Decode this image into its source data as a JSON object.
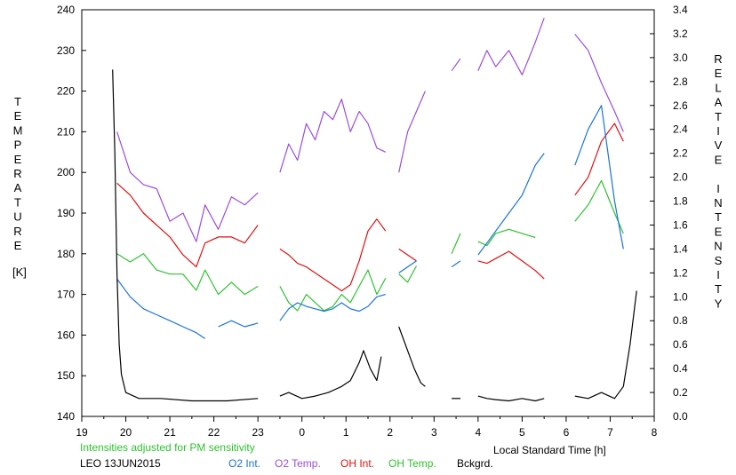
{
  "chart_data": {
    "type": "line",
    "xlabel": "Local Standard Time [h]",
    "x_tick_labels": [
      "19",
      "20",
      "21",
      "22",
      "23",
      "0",
      "1",
      "2",
      "3",
      "4",
      "5",
      "6",
      "7",
      "8"
    ],
    "x_tick_positions": [
      19,
      20,
      21,
      22,
      23,
      24,
      25,
      26,
      27,
      28,
      29,
      30,
      31,
      32
    ],
    "xlim": [
      19,
      32
    ],
    "y_left": {
      "label": "TEMPERATURE",
      "unit": "[K]",
      "ylim": [
        140,
        240
      ],
      "ticks": [
        "140",
        "150",
        "160",
        "170",
        "180",
        "190",
        "200",
        "210",
        "220",
        "230",
        "240"
      ]
    },
    "y_right": {
      "label": "RELATIVE INTENSITY",
      "ylim": [
        0.0,
        3.4
      ],
      "ticks": [
        "0.0",
        "0.2",
        "0.4",
        "0.6",
        "0.8",
        "1.0",
        "1.2",
        "1.4",
        "1.6",
        "1.8",
        "2.0",
        "2.2",
        "2.4",
        "2.6",
        "2.8",
        "3.0",
        "3.2",
        "3.4"
      ]
    },
    "note": "Intensities adjusted for PM sensitivity",
    "station": "LEO 13JUN2015",
    "legend": [
      {
        "label": "O2 Int.",
        "color": "#1a73d9"
      },
      {
        "label": "O2 Temp.",
        "color": "#9b4dd9"
      },
      {
        "label": "OH Int.",
        "color": "#e01010"
      },
      {
        "label": "OH Temp.",
        "color": "#2ec22e"
      },
      {
        "label": "Bckgrd.",
        "color": "#000000"
      }
    ],
    "series": [
      {
        "name": "O2 Temp.",
        "axis": "left",
        "color": "#9b4dd9",
        "segments": [
          [
            [
              19.8,
              210
            ],
            [
              20.1,
              200
            ],
            [
              20.4,
              197
            ],
            [
              20.7,
              196
            ],
            [
              21.0,
              188
            ],
            [
              21.3,
              190
            ],
            [
              21.6,
              183
            ],
            [
              21.8,
              192
            ],
            [
              22.1,
              186
            ],
            [
              22.4,
              194
            ],
            [
              22.7,
              192
            ],
            [
              23.0,
              195
            ]
          ],
          [
            [
              23.5,
              200
            ],
            [
              23.7,
              207
            ],
            [
              23.9,
              203
            ],
            [
              24.1,
              212
            ],
            [
              24.3,
              208
            ],
            [
              24.5,
              215
            ],
            [
              24.7,
              213
            ],
            [
              24.9,
              218
            ],
            [
              25.1,
              210
            ],
            [
              25.3,
              215
            ],
            [
              25.5,
              212
            ],
            [
              25.7,
              206
            ],
            [
              25.9,
              205
            ]
          ],
          [
            [
              26.2,
              200
            ],
            [
              26.4,
              210
            ],
            [
              26.6,
              215
            ],
            [
              26.8,
              220
            ]
          ],
          [
            [
              27.4,
              225
            ],
            [
              27.6,
              228
            ]
          ],
          [
            [
              28.0,
              225
            ],
            [
              28.2,
              230
            ],
            [
              28.4,
              226
            ],
            [
              28.7,
              230
            ],
            [
              29.0,
              224
            ],
            [
              29.3,
              232
            ],
            [
              29.5,
              238
            ]
          ],
          [
            [
              30.2,
              234
            ],
            [
              30.5,
              230
            ],
            [
              30.8,
              222
            ],
            [
              31.1,
              215
            ],
            [
              31.3,
              210
            ]
          ]
        ]
      },
      {
        "name": "OH Int.",
        "axis": "right",
        "color": "#e01010",
        "segments": [
          [
            [
              19.8,
              1.95
            ],
            [
              20.1,
              1.85
            ],
            [
              20.4,
              1.7
            ],
            [
              20.7,
              1.6
            ],
            [
              21.0,
              1.5
            ],
            [
              21.3,
              1.35
            ],
            [
              21.6,
              1.25
            ],
            [
              21.8,
              1.45
            ],
            [
              22.1,
              1.5
            ],
            [
              22.4,
              1.5
            ],
            [
              22.7,
              1.45
            ],
            [
              23.0,
              1.6
            ]
          ],
          [
            [
              23.5,
              1.4
            ],
            [
              23.7,
              1.35
            ],
            [
              23.9,
              1.28
            ],
            [
              24.1,
              1.25
            ],
            [
              24.3,
              1.2
            ],
            [
              24.5,
              1.15
            ],
            [
              24.7,
              1.1
            ],
            [
              24.9,
              1.05
            ],
            [
              25.1,
              1.1
            ],
            [
              25.3,
              1.3
            ],
            [
              25.5,
              1.55
            ],
            [
              25.7,
              1.65
            ],
            [
              25.9,
              1.55
            ]
          ],
          [
            [
              26.2,
              1.4
            ],
            [
              26.4,
              1.35
            ],
            [
              26.6,
              1.3
            ]
          ],
          [
            [
              28.0,
              1.3
            ],
            [
              28.2,
              1.28
            ],
            [
              28.4,
              1.32
            ],
            [
              28.7,
              1.38
            ],
            [
              29.0,
              1.3
            ],
            [
              29.3,
              1.22
            ],
            [
              29.5,
              1.15
            ]
          ],
          [
            [
              30.2,
              1.85
            ],
            [
              30.5,
              2.0
            ],
            [
              30.8,
              2.3
            ],
            [
              31.1,
              2.45
            ],
            [
              31.3,
              2.3
            ]
          ]
        ]
      },
      {
        "name": "OH Temp.",
        "axis": "left",
        "color": "#2ec22e",
        "segments": [
          [
            [
              19.8,
              180
            ],
            [
              20.1,
              178
            ],
            [
              20.4,
              180
            ],
            [
              20.7,
              176
            ],
            [
              21.0,
              175
            ],
            [
              21.3,
              175
            ],
            [
              21.6,
              171
            ],
            [
              21.8,
              176
            ],
            [
              22.1,
              170
            ],
            [
              22.4,
              173
            ],
            [
              22.7,
              170
            ],
            [
              23.0,
              172
            ]
          ],
          [
            [
              23.5,
              172
            ],
            [
              23.7,
              168
            ],
            [
              23.9,
              166
            ],
            [
              24.1,
              170
            ],
            [
              24.3,
              168
            ],
            [
              24.5,
              166
            ],
            [
              24.7,
              167
            ],
            [
              24.9,
              170
            ],
            [
              25.1,
              168
            ],
            [
              25.3,
              172
            ],
            [
              25.5,
              176
            ],
            [
              25.7,
              170
            ],
            [
              25.9,
              174
            ]
          ],
          [
            [
              26.2,
              175
            ],
            [
              26.4,
              173
            ],
            [
              26.6,
              177
            ]
          ],
          [
            [
              27.4,
              180
            ],
            [
              27.6,
              185
            ]
          ],
          [
            [
              28.0,
              183
            ],
            [
              28.2,
              182
            ],
            [
              28.4,
              185
            ],
            [
              28.7,
              186
            ],
            [
              29.0,
              185
            ],
            [
              29.3,
              184
            ]
          ],
          [
            [
              30.2,
              188
            ],
            [
              30.5,
              192
            ],
            [
              30.8,
              198
            ],
            [
              31.1,
              190
            ],
            [
              31.3,
              185
            ]
          ]
        ]
      },
      {
        "name": "O2 Int.",
        "axis": "right",
        "color": "#1a73d9",
        "segments": [
          [
            [
              19.8,
              1.15
            ],
            [
              20.1,
              1.0
            ],
            [
              20.4,
              0.9
            ],
            [
              20.7,
              0.85
            ],
            [
              21.0,
              0.8
            ],
            [
              21.3,
              0.75
            ],
            [
              21.6,
              0.7
            ],
            [
              21.8,
              0.65
            ]
          ],
          [
            [
              22.1,
              0.75
            ],
            [
              22.4,
              0.8
            ],
            [
              22.7,
              0.75
            ],
            [
              23.0,
              0.78
            ]
          ],
          [
            [
              23.5,
              0.8
            ],
            [
              23.7,
              0.9
            ],
            [
              23.9,
              0.95
            ],
            [
              24.1,
              0.92
            ],
            [
              24.3,
              0.9
            ],
            [
              24.5,
              0.88
            ],
            [
              24.7,
              0.9
            ],
            [
              24.9,
              0.95
            ],
            [
              25.1,
              0.9
            ],
            [
              25.3,
              0.88
            ],
            [
              25.5,
              0.92
            ],
            [
              25.7,
              1.0
            ],
            [
              25.9,
              1.02
            ]
          ],
          [
            [
              26.2,
              1.2
            ],
            [
              26.4,
              1.25
            ],
            [
              26.6,
              1.3
            ]
          ],
          [
            [
              27.4,
              1.25
            ],
            [
              27.6,
              1.3
            ]
          ],
          [
            [
              28.0,
              1.35
            ],
            [
              28.2,
              1.45
            ],
            [
              28.4,
              1.55
            ],
            [
              28.7,
              1.7
            ],
            [
              29.0,
              1.85
            ],
            [
              29.3,
              2.1
            ],
            [
              29.5,
              2.2
            ]
          ],
          [
            [
              30.2,
              2.1
            ],
            [
              30.5,
              2.4
            ],
            [
              30.8,
              2.6
            ],
            [
              31.1,
              1.8
            ],
            [
              31.3,
              1.4
            ]
          ]
        ]
      },
      {
        "name": "Bckgrd.",
        "axis": "right",
        "color": "#000000",
        "segments": [
          [
            [
              19.7,
              2.9
            ],
            [
              19.75,
              2.2
            ],
            [
              19.8,
              1.2
            ],
            [
              19.85,
              0.6
            ],
            [
              19.9,
              0.35
            ],
            [
              20.0,
              0.2
            ],
            [
              20.3,
              0.15
            ],
            [
              20.8,
              0.15
            ],
            [
              21.5,
              0.13
            ],
            [
              22.3,
              0.13
            ],
            [
              23.0,
              0.15
            ]
          ],
          [
            [
              23.5,
              0.17
            ],
            [
              23.7,
              0.2
            ],
            [
              24.0,
              0.15
            ],
            [
              24.3,
              0.17
            ],
            [
              24.6,
              0.2
            ],
            [
              24.9,
              0.25
            ],
            [
              25.1,
              0.3
            ],
            [
              25.3,
              0.45
            ],
            [
              25.4,
              0.55
            ],
            [
              25.55,
              0.4
            ],
            [
              25.7,
              0.3
            ],
            [
              25.8,
              0.5
            ]
          ],
          [
            [
              26.2,
              0.75
            ],
            [
              26.4,
              0.55
            ],
            [
              26.55,
              0.4
            ],
            [
              26.7,
              0.28
            ],
            [
              26.8,
              0.25
            ]
          ],
          [
            [
              27.4,
              0.15
            ],
            [
              27.6,
              0.15
            ]
          ],
          [
            [
              28.0,
              0.17
            ],
            [
              28.2,
              0.15
            ],
            [
              28.4,
              0.14
            ],
            [
              28.7,
              0.13
            ],
            [
              29.0,
              0.15
            ],
            [
              29.3,
              0.13
            ],
            [
              29.5,
              0.15
            ]
          ],
          [
            [
              30.2,
              0.17
            ],
            [
              30.5,
              0.15
            ],
            [
              30.8,
              0.2
            ],
            [
              31.1,
              0.15
            ],
            [
              31.3,
              0.25
            ],
            [
              31.45,
              0.6
            ],
            [
              31.6,
              1.05
            ]
          ]
        ]
      }
    ]
  }
}
